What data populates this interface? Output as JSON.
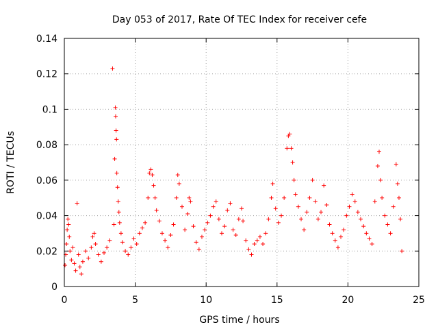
{
  "chart_data": {
    "type": "scatter",
    "title": "Day 053 of 2017, Rate Of TEC Index for receiver cefe",
    "xlabel": "GPS time / hours",
    "ylabel": "ROTI / TECUs",
    "xlim": [
      0,
      25
    ],
    "ylim": [
      0,
      0.14
    ],
    "xticks": [
      0,
      5,
      10,
      15,
      20,
      25
    ],
    "yticks": [
      0,
      0.02,
      0.04,
      0.06,
      0.08,
      0.1,
      0.12,
      0.14
    ],
    "xtick_labels": [
      "0",
      "5",
      "10",
      "15",
      "20",
      "25"
    ],
    "ytick_labels": [
      "0",
      "0.02",
      "0.04",
      "0.06",
      "0.08",
      "0.1",
      "0.12",
      "0.14"
    ],
    "grid": true,
    "marker": "+",
    "color": "#ff0000",
    "series": [
      {
        "name": "ROTI",
        "points": [
          [
            0.05,
            0.012
          ],
          [
            0.1,
            0.018
          ],
          [
            0.15,
            0.024
          ],
          [
            0.2,
            0.032
          ],
          [
            0.25,
            0.038
          ],
          [
            0.3,
            0.035
          ],
          [
            0.35,
            0.028
          ],
          [
            0.4,
            0.02
          ],
          [
            0.5,
            0.015
          ],
          [
            0.6,
            0.022
          ],
          [
            0.7,
            0.013
          ],
          [
            0.8,
            0.009
          ],
          [
            0.9,
            0.047
          ],
          [
            1.0,
            0.018
          ],
          [
            1.1,
            0.011
          ],
          [
            1.2,
            0.007
          ],
          [
            1.3,
            0.014
          ],
          [
            1.5,
            0.02
          ],
          [
            1.7,
            0.016
          ],
          [
            1.9,
            0.022
          ],
          [
            2.0,
            0.028
          ],
          [
            2.1,
            0.03
          ],
          [
            2.2,
            0.024
          ],
          [
            2.4,
            0.018
          ],
          [
            2.6,
            0.014
          ],
          [
            2.8,
            0.019
          ],
          [
            3.0,
            0.022
          ],
          [
            3.2,
            0.026
          ],
          [
            3.4,
            0.123
          ],
          [
            3.5,
            0.035
          ],
          [
            3.55,
            0.072
          ],
          [
            3.6,
            0.101
          ],
          [
            3.62,
            0.096
          ],
          [
            3.65,
            0.088
          ],
          [
            3.68,
            0.083
          ],
          [
            3.7,
            0.064
          ],
          [
            3.75,
            0.056
          ],
          [
            3.8,
            0.048
          ],
          [
            3.85,
            0.042
          ],
          [
            3.9,
            0.036
          ],
          [
            4.0,
            0.03
          ],
          [
            4.1,
            0.025
          ],
          [
            4.3,
            0.02
          ],
          [
            4.5,
            0.018
          ],
          [
            4.7,
            0.022
          ],
          [
            4.9,
            0.027
          ],
          [
            5.1,
            0.024
          ],
          [
            5.3,
            0.03
          ],
          [
            5.5,
            0.033
          ],
          [
            5.7,
            0.036
          ],
          [
            5.9,
            0.05
          ],
          [
            6.0,
            0.064
          ],
          [
            6.1,
            0.066
          ],
          [
            6.2,
            0.063
          ],
          [
            6.3,
            0.057
          ],
          [
            6.4,
            0.05
          ],
          [
            6.5,
            0.043
          ],
          [
            6.7,
            0.037
          ],
          [
            6.9,
            0.03
          ],
          [
            7.1,
            0.026
          ],
          [
            7.3,
            0.022
          ],
          [
            7.5,
            0.029
          ],
          [
            7.7,
            0.035
          ],
          [
            7.9,
            0.05
          ],
          [
            8.0,
            0.063
          ],
          [
            8.1,
            0.058
          ],
          [
            8.3,
            0.045
          ],
          [
            8.5,
            0.032
          ],
          [
            8.7,
            0.041
          ],
          [
            8.8,
            0.05
          ],
          [
            8.9,
            0.048
          ],
          [
            9.1,
            0.034
          ],
          [
            9.3,
            0.025
          ],
          [
            9.5,
            0.021
          ],
          [
            9.7,
            0.028
          ],
          [
            9.9,
            0.032
          ],
          [
            10.1,
            0.036
          ],
          [
            10.3,
            0.04
          ],
          [
            10.5,
            0.045
          ],
          [
            10.7,
            0.048
          ],
          [
            10.9,
            0.038
          ],
          [
            11.1,
            0.03
          ],
          [
            11.3,
            0.034
          ],
          [
            11.5,
            0.043
          ],
          [
            11.7,
            0.047
          ],
          [
            11.9,
            0.032
          ],
          [
            12.1,
            0.029
          ],
          [
            12.3,
            0.038
          ],
          [
            12.5,
            0.044
          ],
          [
            12.6,
            0.037
          ],
          [
            12.8,
            0.026
          ],
          [
            13.0,
            0.021
          ],
          [
            13.2,
            0.018
          ],
          [
            13.4,
            0.024
          ],
          [
            13.6,
            0.026
          ],
          [
            13.8,
            0.028
          ],
          [
            14.0,
            0.024
          ],
          [
            14.2,
            0.03
          ],
          [
            14.4,
            0.038
          ],
          [
            14.6,
            0.05
          ],
          [
            14.7,
            0.058
          ],
          [
            14.9,
            0.044
          ],
          [
            15.1,
            0.036
          ],
          [
            15.3,
            0.04
          ],
          [
            15.5,
            0.05
          ],
          [
            15.7,
            0.078
          ],
          [
            15.8,
            0.085
          ],
          [
            15.9,
            0.086
          ],
          [
            16.0,
            0.078
          ],
          [
            16.1,
            0.07
          ],
          [
            16.2,
            0.06
          ],
          [
            16.3,
            0.052
          ],
          [
            16.5,
            0.045
          ],
          [
            16.7,
            0.038
          ],
          [
            16.9,
            0.032
          ],
          [
            17.1,
            0.042
          ],
          [
            17.3,
            0.05
          ],
          [
            17.5,
            0.06
          ],
          [
            17.7,
            0.048
          ],
          [
            17.9,
            0.038
          ],
          [
            18.1,
            0.042
          ],
          [
            18.3,
            0.057
          ],
          [
            18.5,
            0.046
          ],
          [
            18.7,
            0.035
          ],
          [
            18.9,
            0.03
          ],
          [
            19.1,
            0.026
          ],
          [
            19.3,
            0.022
          ],
          [
            19.5,
            0.028
          ],
          [
            19.7,
            0.032
          ],
          [
            19.9,
            0.04
          ],
          [
            20.1,
            0.045
          ],
          [
            20.3,
            0.052
          ],
          [
            20.5,
            0.048
          ],
          [
            20.7,
            0.042
          ],
          [
            20.9,
            0.038
          ],
          [
            21.1,
            0.034
          ],
          [
            21.3,
            0.03
          ],
          [
            21.5,
            0.027
          ],
          [
            21.7,
            0.024
          ],
          [
            21.9,
            0.048
          ],
          [
            22.1,
            0.068
          ],
          [
            22.2,
            0.076
          ],
          [
            22.3,
            0.06
          ],
          [
            22.4,
            0.05
          ],
          [
            22.6,
            0.04
          ],
          [
            22.8,
            0.035
          ],
          [
            23.0,
            0.03
          ],
          [
            23.2,
            0.045
          ],
          [
            23.4,
            0.069
          ],
          [
            23.5,
            0.058
          ],
          [
            23.6,
            0.05
          ],
          [
            23.7,
            0.038
          ],
          [
            23.8,
            0.02
          ]
        ]
      }
    ]
  }
}
